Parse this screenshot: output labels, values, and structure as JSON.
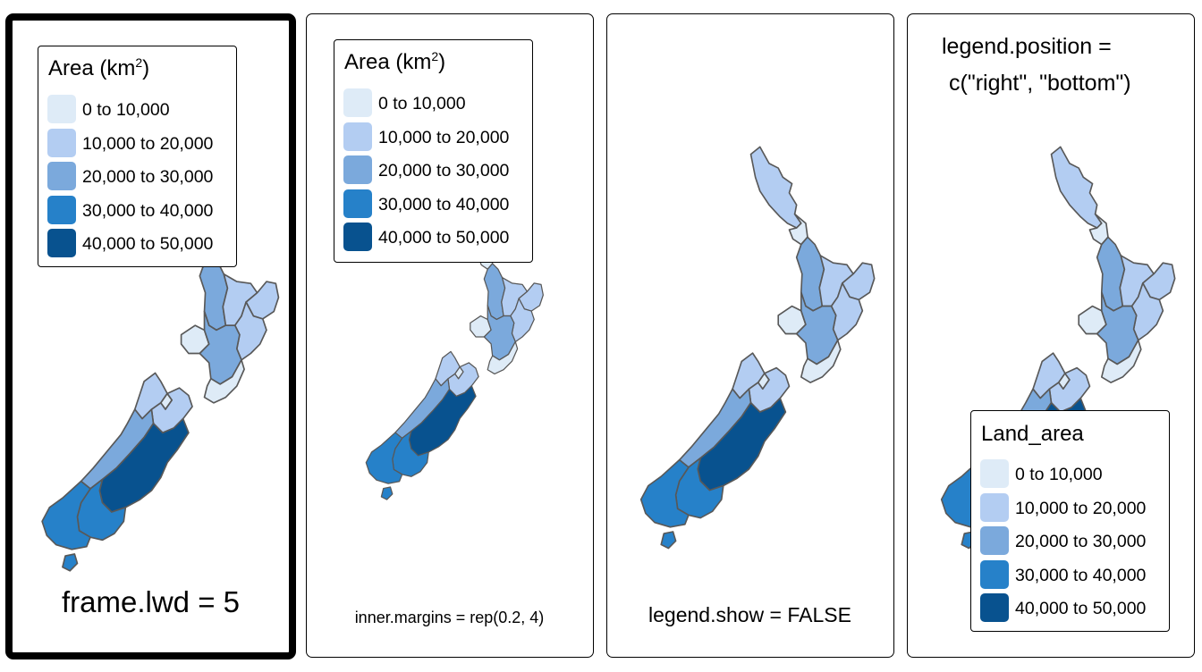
{
  "legend": {
    "title": "Area (km",
    "title_sup": "2",
    "title_close": ")",
    "items": [
      {
        "label": "0 to 10,000",
        "color": "#deebf7"
      },
      {
        "label": "10,000 to 20,000",
        "color": "#b3cdf2"
      },
      {
        "label": "20,000 to 30,000",
        "color": "#7ba9dc"
      },
      {
        "label": "30,000 to 40,000",
        "color": "#2681c9"
      },
      {
        "label": "40,000 to 50,000",
        "color": "#08528f"
      }
    ]
  },
  "legend_alt_title": "Land_area",
  "panels": [
    {
      "caption": "frame.lwd = 5"
    },
    {
      "caption": "inner.margins = rep(0.2, 4)"
    },
    {
      "caption": "legend.show = FALSE"
    },
    {
      "title_line1": "legend.position =",
      "title_line2": "c(\"right\", \"bottom\")"
    }
  ],
  "map_regions": [
    {
      "region": "Northland",
      "class": 1
    },
    {
      "region": "Auckland",
      "class": 0
    },
    {
      "region": "Waikato",
      "class": 2
    },
    {
      "region": "Bay of Plenty",
      "class": 1
    },
    {
      "region": "Gisborne",
      "class": 1
    },
    {
      "region": "Hawke's Bay",
      "class": 1
    },
    {
      "region": "Taranaki",
      "class": 0
    },
    {
      "region": "Manawatu-Wanganui",
      "class": 2
    },
    {
      "region": "Wellington",
      "class": 0
    },
    {
      "region": "Tasman",
      "class": 1
    },
    {
      "region": "Nelson",
      "class": 0
    },
    {
      "region": "Marlborough",
      "class": 1
    },
    {
      "region": "West Coast",
      "class": 2
    },
    {
      "region": "Canterbury",
      "class": 4
    },
    {
      "region": "Otago",
      "class": 3
    },
    {
      "region": "Southland",
      "class": 3
    },
    {
      "region": "Stewart Island",
      "class": 3
    }
  ]
}
